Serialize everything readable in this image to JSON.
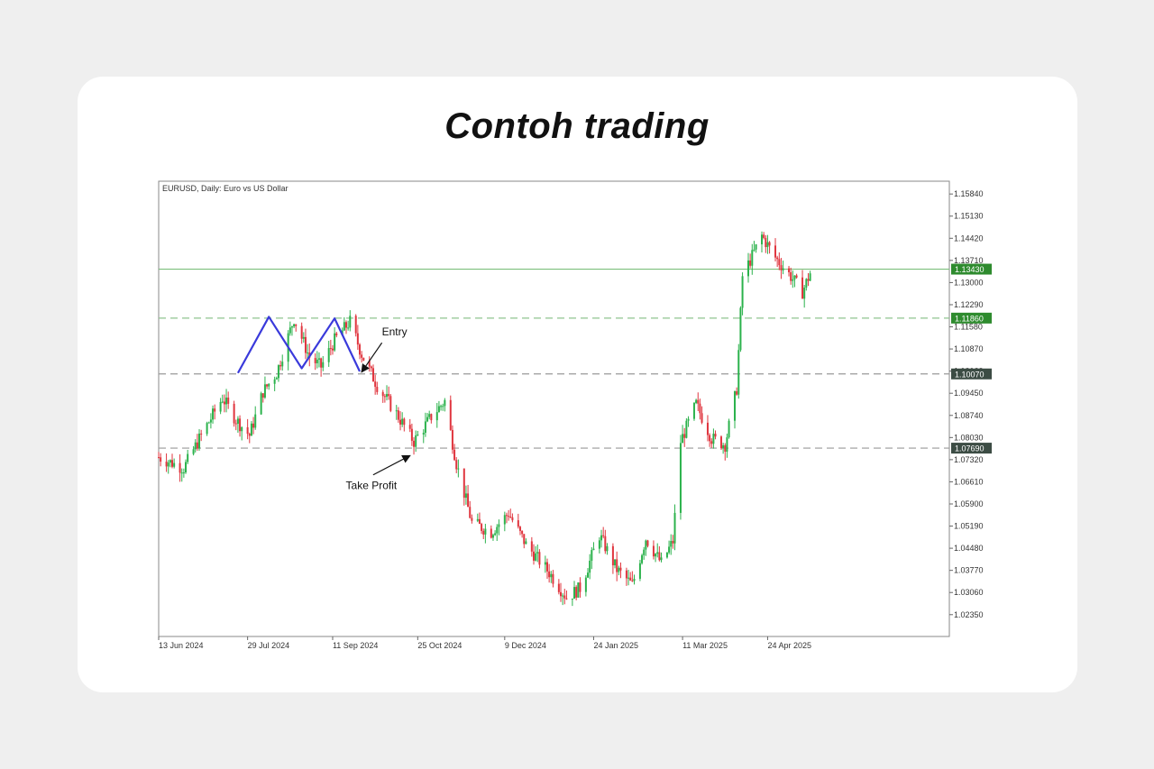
{
  "page": {
    "title": "Contoh trading"
  },
  "chart_data": {
    "type": "candlestick",
    "instrument_label": "EURUSD, Daily:  Euro vs US Dollar",
    "ylim": [
      1.0165,
      1.1625
    ],
    "y_ticks": [
      "1.15840",
      "1.15130",
      "1.14420",
      "1.13710",
      "1.13000",
      "1.12290",
      "1.11580",
      "1.10870",
      "1.10160",
      "1.09450",
      "1.08740",
      "1.08030",
      "1.07320",
      "1.06610",
      "1.05900",
      "1.05190",
      "1.04480",
      "1.03770",
      "1.03060",
      "1.02350"
    ],
    "x_ticks": [
      {
        "label": "13 Jun 2024",
        "date": "2024-06-13"
      },
      {
        "label": "29 Jul 2024",
        "date": "2024-07-29"
      },
      {
        "label": "11 Sep 2024",
        "date": "2024-09-11"
      },
      {
        "label": "25 Oct 2024",
        "date": "2024-10-25"
      },
      {
        "label": "9 Dec 2024",
        "date": "2024-12-09"
      },
      {
        "label": "24 Jan 2025",
        "date": "2025-01-24"
      },
      {
        "label": "11 Mar 2025",
        "date": "2025-03-11"
      },
      {
        "label": "24 Apr 2025",
        "date": "2025-04-24"
      }
    ],
    "x_range": [
      "2024-06-13",
      "2025-07-27"
    ],
    "levels": [
      {
        "value": 1.1343,
        "label": "1.13430",
        "style": "solid",
        "color": "#7cbf7c",
        "tag_color": "#2e8b2e"
      },
      {
        "value": 1.1186,
        "label": "1.11860",
        "style": "dashed",
        "color": "#8fc48f",
        "tag_color": "#2e8b2e"
      },
      {
        "value": 1.1007,
        "label": "1.10070",
        "style": "dashed",
        "color": "#9a9a9a",
        "tag_color": "#3c4c44"
      },
      {
        "value": 1.0769,
        "label": "1.07690",
        "style": "dashed",
        "color": "#9a9a9a",
        "tag_color": "#3c4c44"
      }
    ],
    "pattern_line": {
      "color": "#3a3adb",
      "points": [
        {
          "date": "2024-07-24",
          "value": 1.101
        },
        {
          "date": "2024-08-09",
          "value": 1.119
        },
        {
          "date": "2024-08-26",
          "value": 1.1025
        },
        {
          "date": "2024-09-12",
          "value": 1.1185
        },
        {
          "date": "2024-09-25",
          "value": 1.1015
        }
      ]
    },
    "annotations": [
      {
        "text": "Entry",
        "date": "2024-10-13",
        "value": 1.113,
        "arrow_to": {
          "date": "2024-09-26",
          "value": 1.1013
        }
      },
      {
        "text": "Take Profit",
        "date": "2024-10-01",
        "value": 1.0637,
        "arrow_to": {
          "date": "2024-10-21",
          "value": 1.0745
        }
      }
    ],
    "colors": {
      "up": "#2bb24c",
      "down": "#e0353e"
    },
    "path": [
      {
        "date": "2024-06-13",
        "value": 1.074
      },
      {
        "date": "2024-06-26",
        "value": 1.0705
      },
      {
        "date": "2024-07-05",
        "value": 1.081
      },
      {
        "date": "2024-07-16",
        "value": 1.093
      },
      {
        "date": "2024-07-23",
        "value": 1.086
      },
      {
        "date": "2024-07-30",
        "value": 1.081
      },
      {
        "date": "2024-08-06",
        "value": 1.095
      },
      {
        "date": "2024-08-13",
        "value": 1.101
      },
      {
        "date": "2024-08-22",
        "value": 1.1185
      },
      {
        "date": "2024-08-30",
        "value": 1.106
      },
      {
        "date": "2024-09-05",
        "value": 1.103
      },
      {
        "date": "2024-09-12",
        "value": 1.1115
      },
      {
        "date": "2024-09-20",
        "value": 1.1175
      },
      {
        "date": "2024-09-26",
        "value": 1.107
      },
      {
        "date": "2024-10-04",
        "value": 1.097
      },
      {
        "date": "2024-10-14",
        "value": 1.088
      },
      {
        "date": "2024-10-23",
        "value": 1.079
      },
      {
        "date": "2024-11-01",
        "value": 1.087
      },
      {
        "date": "2024-11-08",
        "value": 1.092
      },
      {
        "date": "2024-11-14",
        "value": 1.072
      },
      {
        "date": "2024-11-22",
        "value": 1.053
      },
      {
        "date": "2024-12-02",
        "value": 1.05
      },
      {
        "date": "2024-12-11",
        "value": 1.056
      },
      {
        "date": "2024-12-20",
        "value": 1.046
      },
      {
        "date": "2025-01-01",
        "value": 1.037
      },
      {
        "date": "2025-01-10",
        "value": 1.029
      },
      {
        "date": "2025-01-17",
        "value": 1.032
      },
      {
        "date": "2025-01-27",
        "value": 1.049
      },
      {
        "date": "2025-02-05",
        "value": 1.038
      },
      {
        "date": "2025-02-13",
        "value": 1.033
      },
      {
        "date": "2025-02-20",
        "value": 1.048
      },
      {
        "date": "2025-02-28",
        "value": 1.04
      },
      {
        "date": "2025-03-06",
        "value": 1.047
      },
      {
        "date": "2025-03-10",
        "value": 1.079
      },
      {
        "date": "2025-03-18",
        "value": 1.091
      },
      {
        "date": "2025-03-26",
        "value": 1.08
      },
      {
        "date": "2025-04-02",
        "value": 1.078
      },
      {
        "date": "2025-04-08",
        "value": 1.096
      },
      {
        "date": "2025-04-11",
        "value": 1.132
      },
      {
        "date": "2025-04-21",
        "value": 1.145
      },
      {
        "date": "2025-04-28",
        "value": 1.138
      },
      {
        "date": "2025-05-06",
        "value": 1.132
      },
      {
        "date": "2025-05-12",
        "value": 1.127
      },
      {
        "date": "2025-05-16",
        "value": 1.133
      }
    ]
  }
}
